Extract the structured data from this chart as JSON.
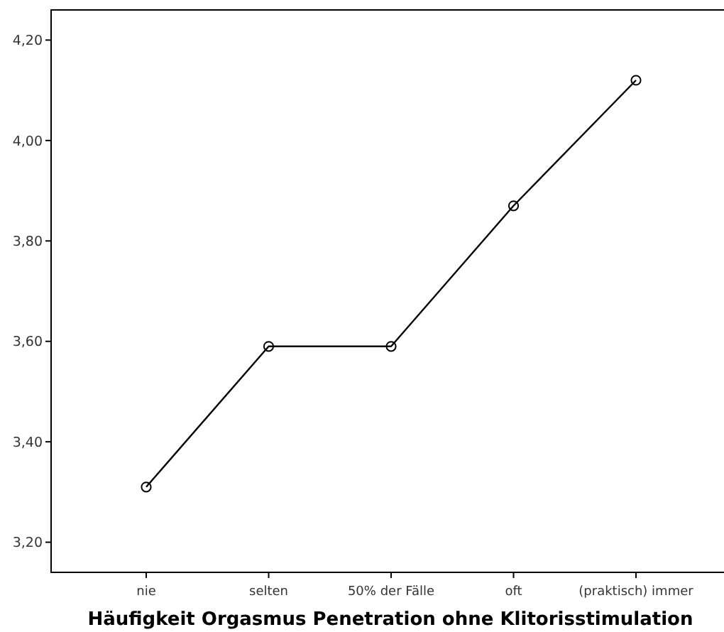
{
  "chart_data": {
    "type": "line",
    "xlabel": "Häufigkeit Orgasmus Penetration ohne Klitorisstimulation",
    "categories": [
      "nie",
      "selten",
      "50% der Fälle",
      "oft",
      "(praktisch) immer"
    ],
    "series": [
      {
        "color": "#000000",
        "values": [
          3.31,
          3.59,
          3.59,
          3.87,
          4.12
        ]
      }
    ],
    "ylim": [
      3.14,
      4.26
    ],
    "yticks": [
      {
        "value": 3.2,
        "label": "3,20"
      },
      {
        "value": 3.4,
        "label": "3,40"
      },
      {
        "value": 3.6,
        "label": "3,60"
      },
      {
        "value": 3.8,
        "label": "3,80"
      },
      {
        "value": 4.0,
        "label": "4,00"
      },
      {
        "value": 4.2,
        "label": "4,20"
      }
    ],
    "marker": "circle",
    "line_style": "solid"
  }
}
